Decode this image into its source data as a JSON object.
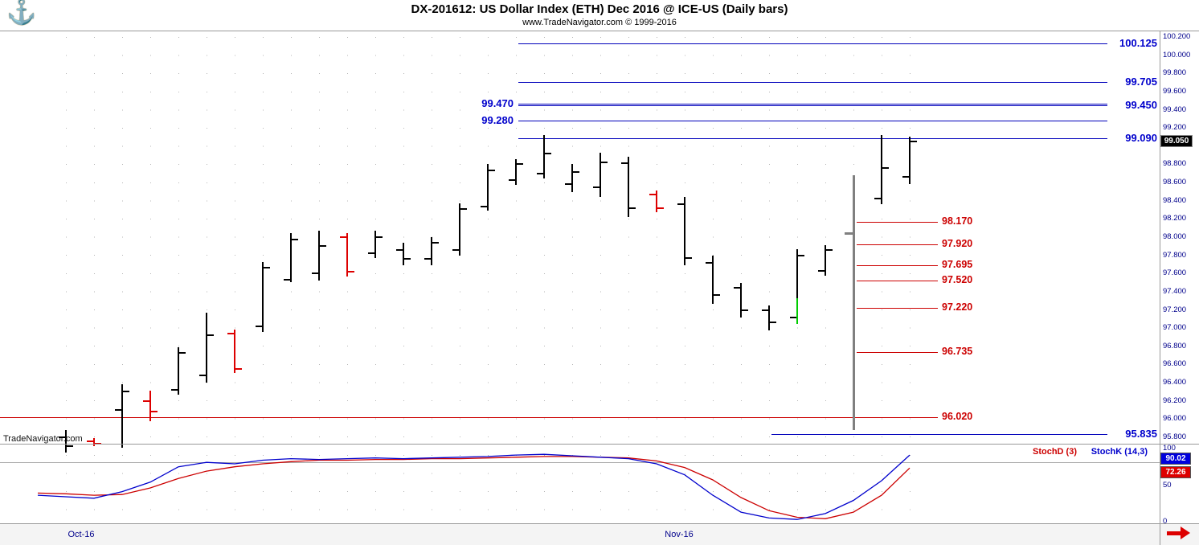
{
  "header": {
    "title": "DX-201612:  US Dollar Index (ETH) Dec 2016 @ ICE-US  (Daily bars)",
    "subtitle": "www.TradeNavigator.com © 1999-2016",
    "logo_icon": "anchor"
  },
  "watermark": "TradeNavigator.com",
  "price_axis": {
    "labels": [
      "100.200",
      "100.000",
      "99.800",
      "99.600",
      "99.400",
      "99.200",
      "98.800",
      "98.600",
      "98.400",
      "98.200",
      "98.000",
      "97.800",
      "97.600",
      "97.400",
      "97.200",
      "97.000",
      "96.800",
      "96.600",
      "96.400",
      "96.200",
      "96.000",
      "95.800"
    ],
    "last_price_box": "99.050"
  },
  "stoch_axis": {
    "labels": [
      {
        "text": "100",
        "value": 100
      },
      {
        "text": "50",
        "value": 50
      },
      {
        "text": "0",
        "value": 0
      }
    ]
  },
  "date_axis": {
    "labels": [
      {
        "text": "Oct-16",
        "slot": 0.55
      },
      {
        "text": "Nov-16",
        "slot": 21.8
      }
    ]
  },
  "colors": {
    "bar_black": "#000000",
    "bar_red": "#dd0000",
    "bar_green": "#00cc00",
    "resistance_blue": "#0000bb",
    "resistance_label": "#0000cc",
    "support_red": "#cc0000",
    "axis_text": "#00008b",
    "divider_gray": "#808080",
    "stoch_k_blue": "#0000cc",
    "stoch_d_red": "#cc0000",
    "arrow_red": "#dd0000"
  },
  "chart_data": {
    "type": "ohlc-bar-with-stochastic",
    "title": "DX-201612:  US Dollar Index (ETH) Dec 2016 @ ICE-US  (Daily bars)",
    "interval": "Daily bars",
    "ylim": [
      95.8,
      100.2
    ],
    "y_tick_step": 0.2,
    "x_tick_labels": [
      "Oct-16",
      "Nov-16"
    ],
    "bars": [
      {
        "slot": 0,
        "o": 95.8,
        "h": 95.88,
        "l": 95.63,
        "c": 95.7,
        "color": "black"
      },
      {
        "slot": 1,
        "o": 95.76,
        "h": 95.79,
        "l": 95.7,
        "c": 95.73,
        "color": "red"
      },
      {
        "slot": 2,
        "o": 96.1,
        "h": 96.38,
        "l": 95.68,
        "c": 96.3,
        "color": "black"
      },
      {
        "slot": 3,
        "o": 96.2,
        "h": 96.31,
        "l": 95.97,
        "c": 96.08,
        "color": "red"
      },
      {
        "slot": 4,
        "o": 96.32,
        "h": 96.79,
        "l": 96.27,
        "c": 96.73,
        "color": "black"
      },
      {
        "slot": 5,
        "o": 96.48,
        "h": 97.17,
        "l": 96.4,
        "c": 96.92,
        "color": "black"
      },
      {
        "slot": 6,
        "o": 96.94,
        "h": 96.98,
        "l": 96.5,
        "c": 96.55,
        "color": "red"
      },
      {
        "slot": 7,
        "o": 97.02,
        "h": 97.73,
        "l": 96.96,
        "c": 97.66,
        "color": "black"
      },
      {
        "slot": 8,
        "o": 97.53,
        "h": 98.04,
        "l": 97.5,
        "c": 97.97,
        "color": "black"
      },
      {
        "slot": 9,
        "o": 97.6,
        "h": 98.07,
        "l": 97.52,
        "c": 97.9,
        "color": "black"
      },
      {
        "slot": 10,
        "o": 98.0,
        "h": 98.04,
        "l": 97.56,
        "c": 97.62,
        "color": "red"
      },
      {
        "slot": 11,
        "o": 97.82,
        "h": 98.07,
        "l": 97.77,
        "c": 98.0,
        "color": "black"
      },
      {
        "slot": 12,
        "o": 97.86,
        "h": 97.94,
        "l": 97.69,
        "c": 97.76,
        "color": "black"
      },
      {
        "slot": 13,
        "o": 97.76,
        "h": 98.0,
        "l": 97.69,
        "c": 97.94,
        "color": "black"
      },
      {
        "slot": 14,
        "o": 97.86,
        "h": 98.37,
        "l": 97.8,
        "c": 98.31,
        "color": "black"
      },
      {
        "slot": 15,
        "o": 98.34,
        "h": 98.8,
        "l": 98.29,
        "c": 98.73,
        "color": "black"
      },
      {
        "slot": 16,
        "o": 98.63,
        "h": 98.86,
        "l": 98.58,
        "c": 98.8,
        "color": "black"
      },
      {
        "slot": 17,
        "o": 98.7,
        "h": 99.12,
        "l": 98.64,
        "c": 98.92,
        "color": "black"
      },
      {
        "slot": 18,
        "o": 98.58,
        "h": 98.8,
        "l": 98.49,
        "c": 98.72,
        "color": "black"
      },
      {
        "slot": 19,
        "o": 98.55,
        "h": 98.93,
        "l": 98.44,
        "c": 98.82,
        "color": "black"
      },
      {
        "slot": 20,
        "o": 98.81,
        "h": 98.88,
        "l": 98.22,
        "c": 98.32,
        "color": "black"
      },
      {
        "slot": 21,
        "o": 98.47,
        "h": 98.51,
        "l": 98.27,
        "c": 98.32,
        "color": "red"
      },
      {
        "slot": 22,
        "o": 98.36,
        "h": 98.44,
        "l": 97.69,
        "c": 97.77,
        "color": "black"
      },
      {
        "slot": 23,
        "o": 97.72,
        "h": 97.8,
        "l": 97.27,
        "c": 97.36,
        "color": "black"
      },
      {
        "slot": 24,
        "o": 97.44,
        "h": 97.5,
        "l": 97.12,
        "c": 97.2,
        "color": "black"
      },
      {
        "slot": 25,
        "o": 97.2,
        "h": 97.25,
        "l": 96.98,
        "c": 97.06,
        "color": "black"
      },
      {
        "slot": 26,
        "o": 97.12,
        "h": 97.87,
        "l": 97.05,
        "c": 97.8,
        "color": "black",
        "low_segment_to": 97.33,
        "low_segment_color": "#00cc00"
      },
      {
        "slot": 27,
        "o": 97.63,
        "h": 97.91,
        "l": 97.57,
        "c": 97.86,
        "color": "black"
      },
      {
        "slot": 29,
        "o": 98.42,
        "h": 99.12,
        "l": 98.36,
        "c": 98.76,
        "color": "black"
      },
      {
        "slot": 30,
        "o": 98.66,
        "h": 99.1,
        "l": 98.58,
        "c": 99.05,
        "color": "black"
      }
    ],
    "divider": {
      "slot": 28,
      "from_price": 98.68,
      "to_price": 95.88,
      "tick_price": 98.05,
      "color": "#808080"
    },
    "resistance_lines": [
      {
        "price": 100.125,
        "label": "100.125",
        "label_side": "right",
        "from_slot": 16
      },
      {
        "price": 99.705,
        "label": "99.705",
        "label_side": "right",
        "from_slot": 16
      },
      {
        "price": 99.47,
        "label": "99.470",
        "label_side": "left",
        "from_slot": 16
      },
      {
        "price": 99.45,
        "label": "99.450",
        "label_side": "right",
        "from_slot": 16
      },
      {
        "price": 99.28,
        "label": "99.280",
        "label_side": "left",
        "from_slot": 16
      },
      {
        "price": 99.09,
        "label": "99.090",
        "label_side": "right",
        "from_slot": 16
      },
      {
        "price": 95.835,
        "label": "95.835",
        "label_side": "right",
        "from_slot": 25
      }
    ],
    "support_lines": [
      {
        "price": 98.17,
        "label": "98.170"
      },
      {
        "price": 97.92,
        "label": "97.920"
      },
      {
        "price": 97.695,
        "label": "97.695"
      },
      {
        "price": 97.52,
        "label": "97.520"
      },
      {
        "price": 97.22,
        "label": "97.220"
      },
      {
        "price": 96.735,
        "label": "96.735"
      },
      {
        "price": 96.02,
        "label": "96.020",
        "full_width": true
      }
    ],
    "stochastic": {
      "k_label": "StochK (14,3)",
      "d_label": "StochD (3)",
      "k_value": "90.02",
      "d_value": "72.26",
      "ylim": [
        0,
        100
      ],
      "level_line": 80,
      "k_points": [
        [
          -1,
          35
        ],
        [
          0,
          33
        ],
        [
          1,
          31
        ],
        [
          2,
          40
        ],
        [
          3,
          53
        ],
        [
          4,
          74
        ],
        [
          5,
          80
        ],
        [
          6,
          78
        ],
        [
          7,
          83
        ],
        [
          8,
          85
        ],
        [
          9,
          84
        ],
        [
          10,
          85
        ],
        [
          11,
          86
        ],
        [
          12,
          85
        ],
        [
          13,
          86
        ],
        [
          14,
          87
        ],
        [
          15,
          88
        ],
        [
          16,
          90
        ],
        [
          17,
          91
        ],
        [
          18,
          89
        ],
        [
          19,
          87
        ],
        [
          20,
          85
        ],
        [
          21,
          78
        ],
        [
          22,
          63
        ],
        [
          23,
          35
        ],
        [
          24,
          12
        ],
        [
          25,
          4
        ],
        [
          26,
          2
        ],
        [
          27,
          10
        ],
        [
          28,
          28
        ],
        [
          29,
          55
        ],
        [
          30,
          90.02
        ]
      ],
      "d_points": [
        [
          -1,
          38
        ],
        [
          0,
          37
        ],
        [
          1,
          35
        ],
        [
          2,
          36
        ],
        [
          3,
          45
        ],
        [
          4,
          58
        ],
        [
          5,
          68
        ],
        [
          6,
          74
        ],
        [
          7,
          78
        ],
        [
          8,
          81
        ],
        [
          9,
          83
        ],
        [
          10,
          83
        ],
        [
          11,
          84
        ],
        [
          12,
          84
        ],
        [
          13,
          85
        ],
        [
          14,
          85
        ],
        [
          15,
          86
        ],
        [
          16,
          87
        ],
        [
          17,
          88
        ],
        [
          18,
          88
        ],
        [
          19,
          87
        ],
        [
          20,
          86
        ],
        [
          21,
          82
        ],
        [
          22,
          73
        ],
        [
          23,
          56
        ],
        [
          24,
          32
        ],
        [
          25,
          14
        ],
        [
          26,
          5
        ],
        [
          27,
          3
        ],
        [
          28,
          12
        ],
        [
          29,
          35
        ],
        [
          30,
          72.26
        ]
      ]
    }
  }
}
